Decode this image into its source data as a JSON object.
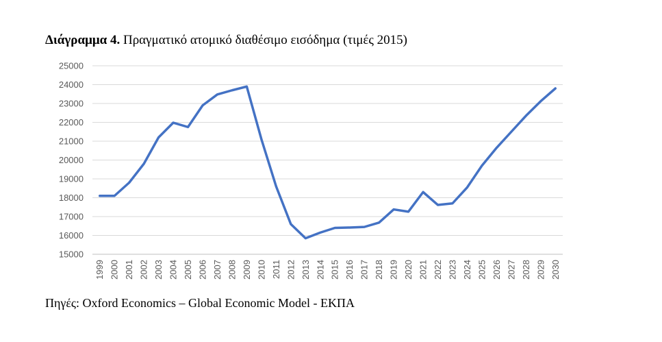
{
  "caption": {
    "lead": "Διάγραμμα 4.",
    "text": " Πραγματικό ατομικό διαθέσιμο εισόδημα (τιμές 2015)"
  },
  "source": "Πηγές: Oxford Economics – Global Economic Model - ΕΚΠΑ",
  "chart_data": {
    "type": "line",
    "title": "Διάγραμμα 4. Πραγματικό ατομικό διαθέσιμο εισόδημα (τιμές 2015)",
    "xlabel": "",
    "ylabel": "",
    "ylim": [
      15000,
      25000
    ],
    "yticks": [
      "15000",
      "16000",
      "17000",
      "18000",
      "19000",
      "20000",
      "21000",
      "22000",
      "23000",
      "24000",
      "25000"
    ],
    "grid": true,
    "legend": "none",
    "line_color": "#4472C4",
    "grid_color": "#d9d9d9",
    "categories": [
      "1999",
      "2000",
      "2001",
      "2002",
      "2003",
      "2004",
      "2005",
      "2006",
      "2007",
      "2008",
      "2009",
      "2010",
      "2011",
      "2012",
      "2013",
      "2014",
      "2015",
      "2016",
      "2017",
      "2018",
      "2019",
      "2020",
      "2021",
      "2022",
      "2023",
      "2024",
      "2025",
      "2026",
      "2027",
      "2028",
      "2029",
      "2030"
    ],
    "series": [
      {
        "name": "Πραγματικό ατομικό διαθέσιμο εισόδημα",
        "values": [
          18100,
          18100,
          18800,
          19800,
          21200,
          21980,
          21750,
          22900,
          23480,
          23700,
          23900,
          21100,
          18600,
          16600,
          15850,
          16150,
          16400,
          16420,
          16450,
          16680,
          17380,
          17260,
          18300,
          17620,
          17700,
          18550,
          19700,
          20650,
          21500,
          22350,
          23120,
          23800
        ]
      }
    ]
  }
}
